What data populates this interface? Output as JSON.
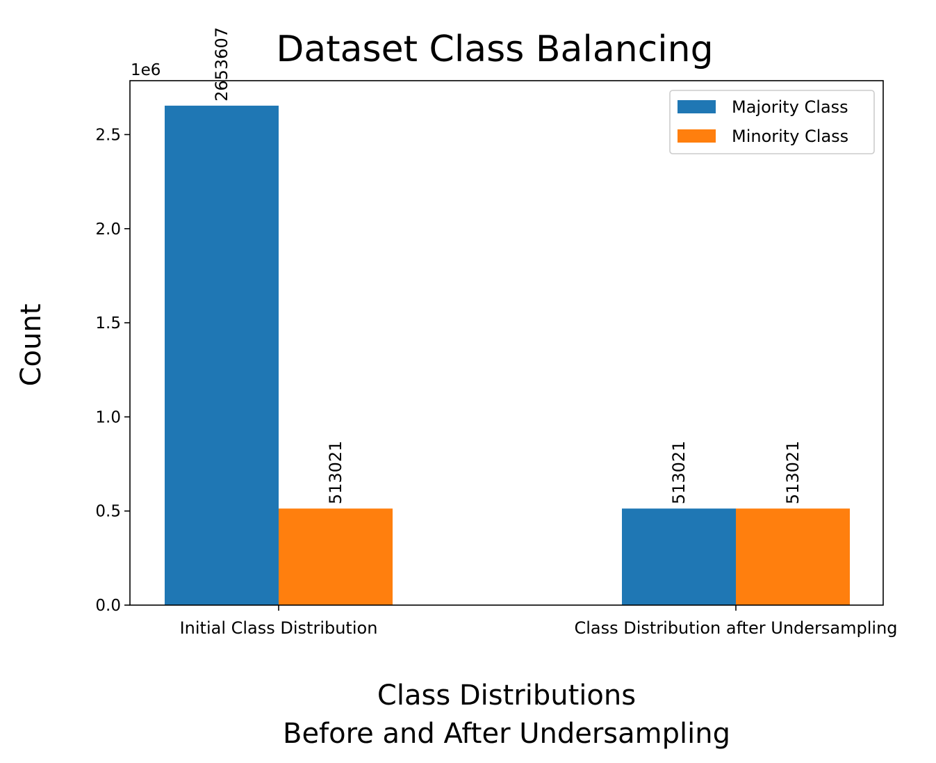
{
  "chart_data": {
    "type": "bar",
    "title": "Dataset Class Balancing",
    "xlabel": "Class Distributions\nBefore and After Undersampling",
    "ylabel": "Count",
    "categories": [
      "Initial Class Distribution",
      "Class Distribution after Undersampling"
    ],
    "series": [
      {
        "name": "Majority Class",
        "color": "#1f77b4",
        "values": [
          2653607,
          513021
        ]
      },
      {
        "name": "Minority Class",
        "color": "#ff7f0e",
        "values": [
          513021,
          513021
        ]
      }
    ],
    "bar_labels": [
      [
        "2653607",
        "513021"
      ],
      [
        "513021",
        "513021"
      ]
    ],
    "ylim": [
      0,
      2786287
    ],
    "yticks": [
      0,
      500000,
      1000000,
      1500000,
      2000000,
      2500000
    ],
    "ytick_labels": [
      "0.0",
      "0.5",
      "1.0",
      "1.5",
      "2.0",
      "2.5"
    ],
    "y_offset_text": "1e6",
    "legend_position": "top-right",
    "grid": false
  }
}
